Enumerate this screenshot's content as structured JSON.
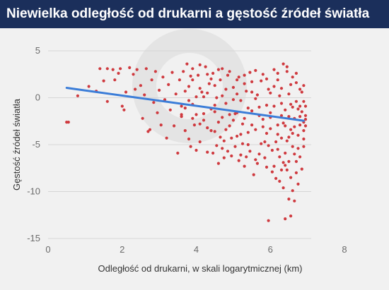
{
  "chart_data": {
    "type": "scatter",
    "title": "Niewielka odległość od drukarni a gęstość źródeł światła",
    "xlabel": "Odległość od drukarni, w skali logarytmicznej (km)",
    "ylabel": "Gęstość źródeł światła",
    "xlim": [
      0,
      8
    ],
    "ylim": [
      -15,
      5
    ],
    "xticks": [
      0,
      2,
      4,
      6,
      8
    ],
    "yticks": [
      5,
      0,
      -5,
      -10,
      -15
    ],
    "grid": "horizontal",
    "legend": "none",
    "colors": {
      "points": "#cf3a3f",
      "trend": "#3b7dd8",
      "grid": "#d6d6d6",
      "tick_text": "#6b6b6b",
      "title_bg": "#1b2f5b"
    },
    "trend_line": {
      "x": [
        0.5,
        6.9
      ],
      "y": [
        1.05,
        -2.45
      ]
    },
    "series": [
      {
        "points": [
          [
            0.5,
            -2.6
          ],
          [
            0.55,
            -2.6
          ],
          [
            0.8,
            0.2
          ],
          [
            1.1,
            1.2
          ],
          [
            1.3,
            0.7
          ],
          [
            1.4,
            3.1
          ],
          [
            1.5,
            1.8
          ],
          [
            1.6,
            3.1
          ],
          [
            1.6,
            -0.4
          ],
          [
            1.75,
            3.0
          ],
          [
            1.8,
            1.9
          ],
          [
            1.9,
            2.6
          ],
          [
            1.95,
            3.1
          ],
          [
            2.0,
            -0.9
          ],
          [
            2.05,
            -1.3
          ],
          [
            2.1,
            0.6
          ],
          [
            2.2,
            3.2
          ],
          [
            2.3,
            2.5
          ],
          [
            2.35,
            0.9
          ],
          [
            2.4,
            3.0
          ],
          [
            2.5,
            1.3
          ],
          [
            2.55,
            -2.2
          ],
          [
            2.6,
            0.3
          ],
          [
            2.65,
            3.1
          ],
          [
            2.7,
            -3.6
          ],
          [
            2.75,
            -3.4
          ],
          [
            2.8,
            1.9
          ],
          [
            2.85,
            -0.5
          ],
          [
            2.9,
            2.8
          ],
          [
            2.95,
            -1.6
          ],
          [
            3.0,
            0.8
          ],
          [
            3.05,
            -2.9
          ],
          [
            3.1,
            2.2
          ],
          [
            3.15,
            -0.2
          ],
          [
            3.2,
            -4.3
          ],
          [
            3.25,
            1.4
          ],
          [
            3.3,
            -1.3
          ],
          [
            3.35,
            2.7
          ],
          [
            3.4,
            -3.0
          ],
          [
            3.45,
            0.4
          ],
          [
            3.5,
            -5.9
          ],
          [
            3.55,
            1.9
          ],
          [
            3.6,
            -2.0
          ],
          [
            3.65,
            2.8
          ],
          [
            3.7,
            -1.1
          ],
          [
            3.75,
            3.6
          ],
          [
            3.8,
            -4.4
          ],
          [
            3.85,
            2.3
          ],
          [
            3.9,
            -0.7
          ],
          [
            3.95,
            -2.9
          ],
          [
            3.6,
            -0.9
          ],
          [
            3.7,
            -3.5
          ],
          [
            3.8,
            1.2
          ],
          [
            3.85,
            -5.2
          ],
          [
            3.9,
            3.1
          ],
          [
            4.0,
            -1.8
          ],
          [
            4.05,
            2.4
          ],
          [
            4.1,
            -4.7
          ],
          [
            4.15,
            0.6
          ],
          [
            4.2,
            -2.4
          ],
          [
            4.25,
            3.3
          ],
          [
            4.3,
            -5.8
          ],
          [
            4.35,
            1.5
          ],
          [
            4.4,
            -1.2
          ],
          [
            4.45,
            2.6
          ],
          [
            4.5,
            -3.6
          ],
          [
            4.55,
            0.0
          ],
          [
            4.6,
            -7.0
          ],
          [
            4.65,
            1.9
          ],
          [
            4.7,
            -2.1
          ],
          [
            4.75,
            -4.6
          ],
          [
            4.8,
            0.9
          ],
          [
            4.0,
            -5.6
          ],
          [
            4.1,
            3.5
          ],
          [
            4.2,
            0.1
          ],
          [
            4.3,
            -3.2
          ],
          [
            4.4,
            2.0
          ],
          [
            4.5,
            -1.5
          ],
          [
            4.6,
            3.0
          ],
          [
            4.7,
            -5.4
          ],
          [
            4.8,
            -0.6
          ],
          [
            4.85,
            2.4
          ],
          [
            4.9,
            -3.0
          ],
          [
            4.95,
            -6.2
          ],
          [
            5.0,
            1.1
          ],
          [
            5.05,
            -1.7
          ],
          [
            5.1,
            -4.1
          ],
          [
            5.15,
            2.2
          ],
          [
            5.2,
            -0.3
          ],
          [
            5.25,
            -2.8
          ],
          [
            5.3,
            -7.3
          ],
          [
            5.35,
            0.7
          ],
          [
            5.4,
            -5.0
          ],
          [
            5.45,
            2.7
          ],
          [
            5.5,
            -1.4
          ],
          [
            5.55,
            -8.2
          ],
          [
            5.6,
            -3.4
          ],
          [
            5.65,
            0.3
          ],
          [
            5.7,
            -6.0
          ],
          [
            5.75,
            1.8
          ],
          [
            5.8,
            -2.3
          ],
          [
            5.85,
            -4.7
          ],
          [
            5.9,
            -7.4
          ],
          [
            5.95,
            0.9
          ],
          [
            5.0,
            -2.4
          ],
          [
            5.1,
            0.4
          ],
          [
            5.2,
            -6.1
          ],
          [
            5.3,
            1.5
          ],
          [
            5.4,
            -3.7
          ],
          [
            5.5,
            0.6
          ],
          [
            5.6,
            -6.6
          ],
          [
            5.7,
            -1.0
          ],
          [
            5.8,
            2.5
          ],
          [
            5.9,
            -3.8
          ],
          [
            6.0,
            -1.6
          ],
          [
            6.05,
            -5.6
          ],
          [
            6.1,
            1.2
          ],
          [
            6.15,
            -8.6
          ],
          [
            6.2,
            -2.9
          ],
          [
            6.25,
            0.2
          ],
          [
            6.3,
            -4.3
          ],
          [
            6.35,
            -9.6
          ],
          [
            6.4,
            -1.3
          ],
          [
            6.45,
            2.8
          ],
          [
            6.5,
            -6.8
          ],
          [
            6.55,
            -0.7
          ],
          [
            6.6,
            -9.9
          ],
          [
            6.65,
            -3.1
          ],
          [
            6.7,
            1.6
          ],
          [
            6.75,
            -5.4
          ],
          [
            6.8,
            -2.0
          ],
          [
            6.85,
            -7.6
          ],
          [
            6.9,
            -0.4
          ],
          [
            6.0,
            -3.3
          ],
          [
            6.1,
            -7.3
          ],
          [
            6.2,
            1.9
          ],
          [
            6.3,
            -1.9
          ],
          [
            6.4,
            -5.9
          ],
          [
            6.5,
            0.4
          ],
          [
            6.6,
            -3.8
          ],
          [
            6.7,
            -8.0
          ],
          [
            6.8,
            0.9
          ],
          [
            6.9,
            -2.6
          ],
          [
            6.45,
            3.3
          ],
          [
            6.5,
            -10.8
          ],
          [
            6.4,
            -12.9
          ],
          [
            6.55,
            -12.6
          ],
          [
            5.95,
            -13.1
          ],
          [
            6.65,
            -11.0
          ],
          [
            6.45,
            -4.6
          ],
          [
            6.75,
            -1.2
          ],
          [
            6.9,
            -4.4
          ],
          [
            6.85,
            0.6
          ],
          [
            6.6,
            2.2
          ],
          [
            6.35,
            -2.7
          ],
          [
            6.25,
            -6.3
          ],
          [
            6.95,
            -1.9
          ],
          [
            6.95,
            -0.9
          ],
          [
            6.9,
            -3.5
          ],
          [
            6.85,
            -1.5
          ],
          [
            6.8,
            -2.9
          ],
          [
            6.75,
            -4.0
          ],
          [
            6.7,
            -0.4
          ],
          [
            6.65,
            -2.2
          ],
          [
            6.6,
            -1.0
          ],
          [
            6.55,
            -3.4
          ],
          [
            6.5,
            -2.0
          ],
          [
            6.4,
            -3.0
          ],
          [
            6.3,
            -0.6
          ],
          [
            6.2,
            -3.9
          ],
          [
            6.1,
            -0.9
          ],
          [
            6.0,
            -2.1
          ],
          [
            5.9,
            -0.8
          ],
          [
            5.8,
            -3.1
          ],
          [
            5.7,
            -1.9
          ],
          [
            5.6,
            -0.1
          ],
          [
            5.5,
            -2.9
          ],
          [
            5.4,
            -1.1
          ],
          [
            5.3,
            -2.2
          ],
          [
            5.2,
            -3.9
          ],
          [
            5.1,
            -1.6
          ],
          [
            5.0,
            -0.2
          ],
          [
            4.9,
            -1.8
          ],
          [
            4.8,
            -3.4
          ],
          [
            4.7,
            0.2
          ],
          [
            4.6,
            -2.6
          ],
          [
            4.5,
            -0.8
          ],
          [
            4.4,
            -3.5
          ],
          [
            4.3,
            0.5
          ],
          [
            4.2,
            -1.7
          ],
          [
            4.1,
            -2.8
          ],
          [
            4.0,
            0.1
          ],
          [
            3.9,
            -2.2
          ],
          [
            3.8,
            -0.3
          ],
          [
            3.7,
            0.7
          ],
          [
            3.6,
            -1.8
          ],
          [
            5.45,
            -5.7
          ],
          [
            5.65,
            -7.0
          ],
          [
            5.75,
            -4.9
          ],
          [
            5.85,
            -6.4
          ],
          [
            5.95,
            -5.1
          ],
          [
            6.05,
            -7.9
          ],
          [
            6.15,
            -4.7
          ],
          [
            6.25,
            -8.9
          ],
          [
            6.35,
            -6.9
          ],
          [
            6.45,
            -7.7
          ],
          [
            6.55,
            -8.5
          ],
          [
            6.65,
            -6.0
          ],
          [
            6.75,
            -9.2
          ],
          [
            5.05,
            -5.2
          ],
          [
            5.15,
            -6.7
          ],
          [
            5.25,
            -4.9
          ],
          [
            5.35,
            -6.3
          ],
          [
            4.95,
            -4.3
          ],
          [
            4.85,
            -5.7
          ],
          [
            4.75,
            -6.4
          ],
          [
            4.65,
            -4.2
          ],
          [
            4.55,
            -5.1
          ],
          [
            4.45,
            -5.9
          ],
          [
            5.6,
            2.9
          ],
          [
            5.9,
            2.0
          ],
          [
            6.2,
            2.6
          ],
          [
            6.35,
            3.6
          ],
          [
            5.5,
            1.7
          ],
          [
            5.3,
            2.4
          ],
          [
            5.1,
            1.9
          ],
          [
            4.9,
            2.8
          ],
          [
            4.7,
            3.1
          ],
          [
            4.5,
            1.3
          ],
          [
            4.3,
            2.5
          ],
          [
            4.1,
            1.0
          ],
          [
            3.9,
            1.9
          ],
          [
            6.0,
            0.5
          ],
          [
            6.1,
            3.0
          ],
          [
            6.3,
            1.0
          ],
          [
            6.55,
            1.4
          ],
          [
            6.7,
            2.6
          ],
          [
            6.8,
            -0.9
          ],
          [
            6.9,
            1.3
          ],
          [
            6.95,
            -2.3
          ],
          [
            6.95,
            -3.0
          ],
          [
            6.9,
            -5.2
          ],
          [
            6.8,
            -6.3
          ],
          [
            6.7,
            -6.8
          ],
          [
            6.6,
            -5.2
          ],
          [
            6.5,
            -4.2
          ],
          [
            6.4,
            -7.2
          ],
          [
            6.3,
            -7.7
          ],
          [
            6.2,
            -5.5
          ]
        ]
      }
    ]
  }
}
